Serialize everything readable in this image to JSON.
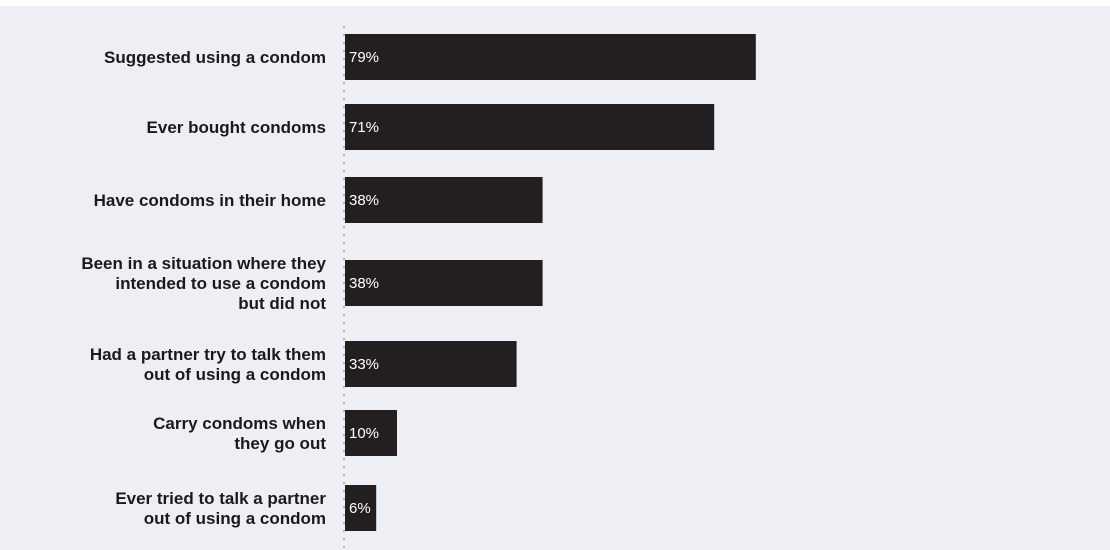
{
  "chart_data": {
    "type": "bar",
    "orientation": "horizontal",
    "categories": [
      "Suggested using a condom",
      "Ever bought condoms",
      "Have condoms in their home",
      "Been in a situation where they intended to use a condom but did not",
      "Had a partner try to talk them out of using a condom",
      "Carry condoms when they go out",
      "Ever tried to talk a partner out of using a condom"
    ],
    "category_lines": [
      [
        "Suggested using a condom"
      ],
      [
        "Ever bought condoms"
      ],
      [
        "Have condoms in their home"
      ],
      [
        "Been in a situation where they",
        "intended to use a condom",
        "but did not"
      ],
      [
        "Had a partner try to talk them",
        "out of using a condom"
      ],
      [
        "Carry condoms when",
        "they go out"
      ],
      [
        "Ever tried to talk a partner",
        "out of using a condom"
      ]
    ],
    "values": [
      79,
      71,
      38,
      38,
      33,
      10,
      6
    ],
    "value_labels": [
      "79%",
      "71%",
      "38%",
      "38%",
      "33%",
      "10%",
      "6%"
    ],
    "xlim": [
      0,
      100
    ],
    "title": "",
    "xlabel": "",
    "ylabel": "",
    "grid": false,
    "legend": "none",
    "colors": {
      "bar": "#231f20",
      "background": "#eeeff4",
      "top_band": "#ffffff",
      "axis": "#b5b5b5",
      "label_text": "#1a1a1a",
      "value_text": "#ffffff"
    }
  }
}
